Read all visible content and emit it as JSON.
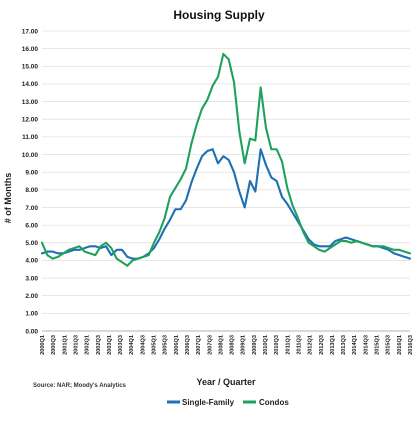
{
  "chart_data": {
    "type": "line",
    "title": "Housing Supply",
    "xlabel": "Year / Quarter",
    "ylabel": "# of Months",
    "ylim": [
      0,
      17
    ],
    "yticks": [
      0,
      1,
      2,
      3,
      4,
      5,
      6,
      7,
      8,
      9,
      10,
      11,
      12,
      13,
      14,
      15,
      16,
      17
    ],
    "ytick_labels": [
      "0.00",
      "1.00",
      "2.00",
      "3.00",
      "4.00",
      "5.00",
      "6.00",
      "7.00",
      "8.00",
      "9.00",
      "10.00",
      "11.00",
      "12.00",
      "13.00",
      "14.00",
      "15.00",
      "16.00",
      "17.00"
    ],
    "grid": true,
    "legend_position": "bottom",
    "source": "Source: NAR; Moody's Analytics",
    "x_tick_labels": [
      "2000Q1",
      "2000Q3",
      "2001Q1",
      "2001Q3",
      "2002Q1",
      "2002Q3",
      "2003Q1",
      "2003Q3",
      "2004Q1",
      "2004Q3",
      "2005Q1",
      "2005Q3",
      "2006Q1",
      "2006Q3",
      "2007Q1",
      "2007Q3",
      "2008Q1",
      "2008Q3",
      "2009Q1",
      "2009Q3",
      "2010Q1",
      "2010Q3",
      "2011Q1",
      "2011Q3",
      "2012Q1",
      "2012Q3",
      "2013Q1",
      "2013Q3",
      "2014Q1",
      "2014Q3",
      "2015Q1",
      "2015Q3",
      "2016Q1",
      "2016Q3"
    ],
    "series": [
      {
        "name": "Single-Family",
        "color": "#1f6fb4",
        "values": [
          4.4,
          4.5,
          4.5,
          4.4,
          4.4,
          4.5,
          4.6,
          4.6,
          4.7,
          4.8,
          4.8,
          4.7,
          4.8,
          4.3,
          4.6,
          4.6,
          4.2,
          4.1,
          4.1,
          4.2,
          4.4,
          4.7,
          5.2,
          5.8,
          6.3,
          6.9,
          6.9,
          7.4,
          8.4,
          9.2,
          9.9,
          10.2,
          10.3,
          9.5,
          9.9,
          9.7,
          9.0,
          7.9,
          7.0,
          8.5,
          7.9,
          10.3,
          9.4,
          8.7,
          8.5,
          7.6,
          7.2,
          6.7,
          6.2,
          5.7,
          5.2,
          4.9,
          4.8,
          4.8,
          4.8,
          5.1,
          5.2,
          5.3,
          5.2,
          5.1,
          5.0,
          4.9,
          4.8,
          4.8,
          4.7,
          4.6,
          4.4,
          4.3,
          4.2,
          4.1
        ]
      },
      {
        "name": "Condos",
        "color": "#20a15b",
        "values": [
          5.0,
          4.3,
          4.1,
          4.2,
          4.4,
          4.6,
          4.7,
          4.8,
          4.5,
          4.4,
          4.3,
          4.8,
          5.0,
          4.7,
          4.1,
          3.9,
          3.7,
          4.0,
          4.1,
          4.2,
          4.3,
          5.0,
          5.6,
          6.4,
          7.6,
          8.1,
          8.6,
          9.2,
          10.6,
          11.7,
          12.6,
          13.1,
          13.9,
          14.4,
          15.7,
          15.4,
          14.1,
          11.3,
          9.5,
          10.9,
          10.8,
          13.8,
          11.5,
          10.3,
          10.3,
          9.6,
          8.1,
          7.1,
          6.4,
          5.6,
          5.0,
          4.8,
          4.6,
          4.5,
          4.7,
          4.9,
          5.1,
          5.1,
          5.0,
          5.1,
          5.0,
          4.9,
          4.8,
          4.8,
          4.8,
          4.7,
          4.6,
          4.6,
          4.5,
          4.4
        ]
      }
    ]
  }
}
